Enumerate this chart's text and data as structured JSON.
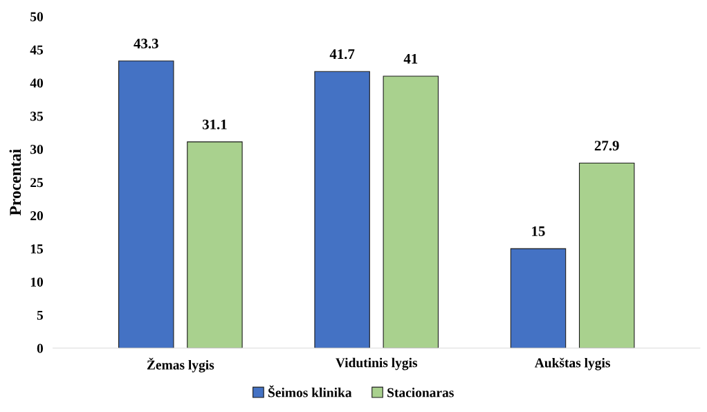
{
  "chart_data": {
    "type": "bar",
    "ylabel": "Procentai",
    "categories": [
      "Žemas lygis",
      "Vidutinis lygis",
      "Aukštas lygis"
    ],
    "series": [
      {
        "name": "Šeimos klinika",
        "color": "#4472c4",
        "values": [
          43.3,
          41.7,
          15
        ]
      },
      {
        "name": "Stacionaras",
        "color": "#a9d18e",
        "values": [
          31.1,
          41,
          27.9
        ]
      }
    ],
    "ylim": [
      0,
      50
    ],
    "yticks": [
      0,
      5,
      10,
      15,
      20,
      25,
      30,
      35,
      40,
      45,
      50
    ],
    "data_labels": true,
    "grid": false,
    "legend": "bottom"
  }
}
